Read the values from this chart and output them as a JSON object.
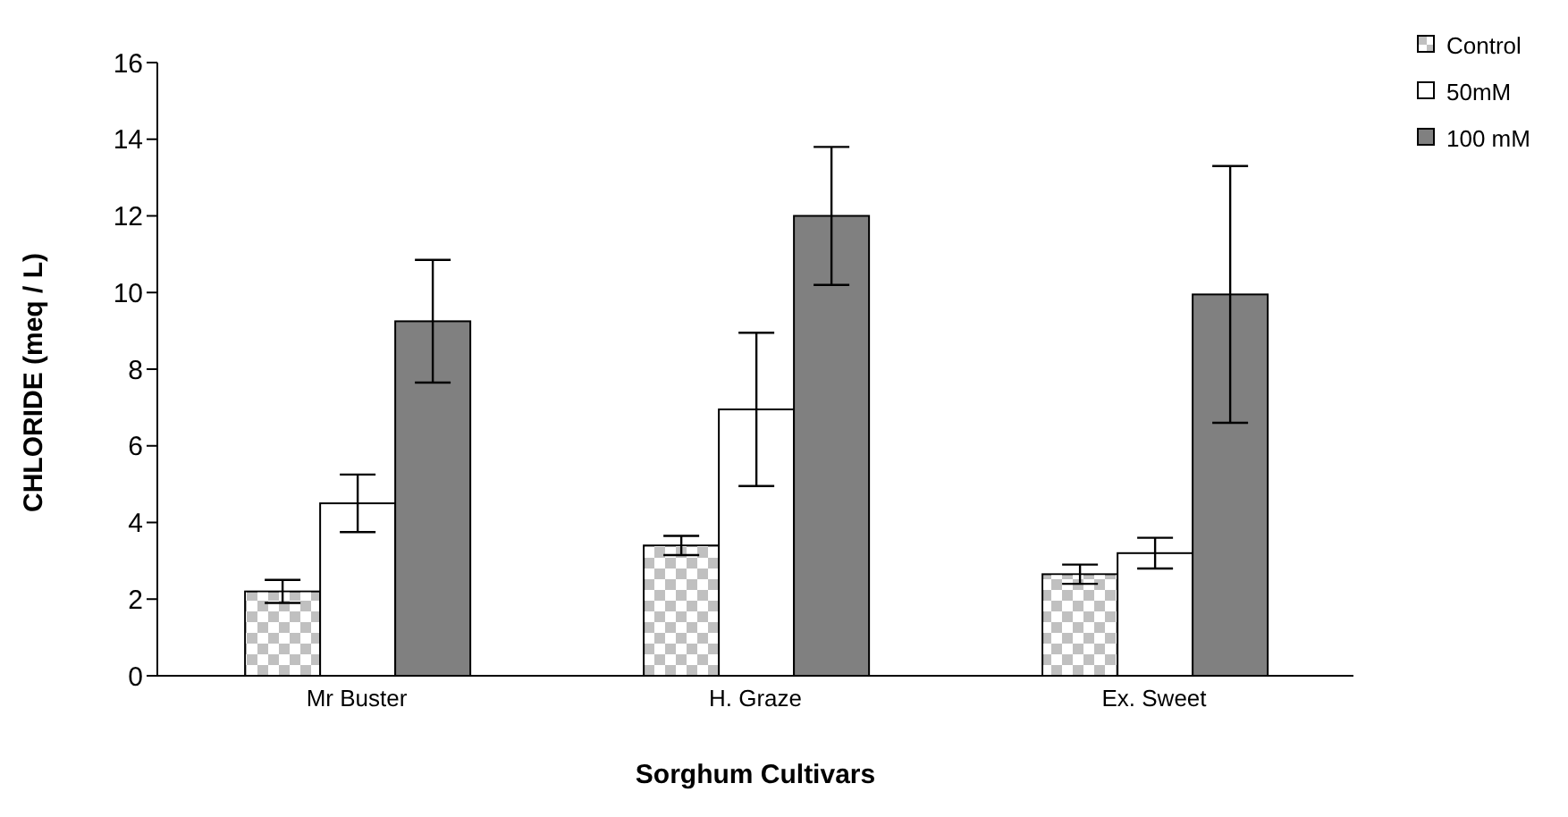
{
  "chart_data": {
    "type": "bar",
    "xlabel": "Sorghum Cultivars",
    "ylabel": "CHLORIDE (meq / L)",
    "categories": [
      "Mr Buster",
      "H. Graze",
      "Ex. Sweet"
    ],
    "series": [
      {
        "name": "Control",
        "color": "#c0c0c0",
        "values": [
          2.2,
          3.4,
          2.65
        ],
        "errors": [
          0.3,
          0.25,
          0.25
        ]
      },
      {
        "name": "50mM",
        "color": "#ffffff",
        "values": [
          4.5,
          6.95,
          3.2
        ],
        "errors": [
          0.75,
          2.0,
          0.4
        ]
      },
      {
        "name": "100 mM",
        "color": "#808080",
        "values": [
          9.25,
          12.0,
          9.95
        ],
        "errors": [
          1.6,
          1.8,
          3.35
        ]
      }
    ],
    "ylim": [
      0,
      16
    ],
    "yticks": [
      0,
      2,
      4,
      6,
      8,
      10,
      12,
      14,
      16
    ],
    "grid": false,
    "legend": "top right"
  }
}
